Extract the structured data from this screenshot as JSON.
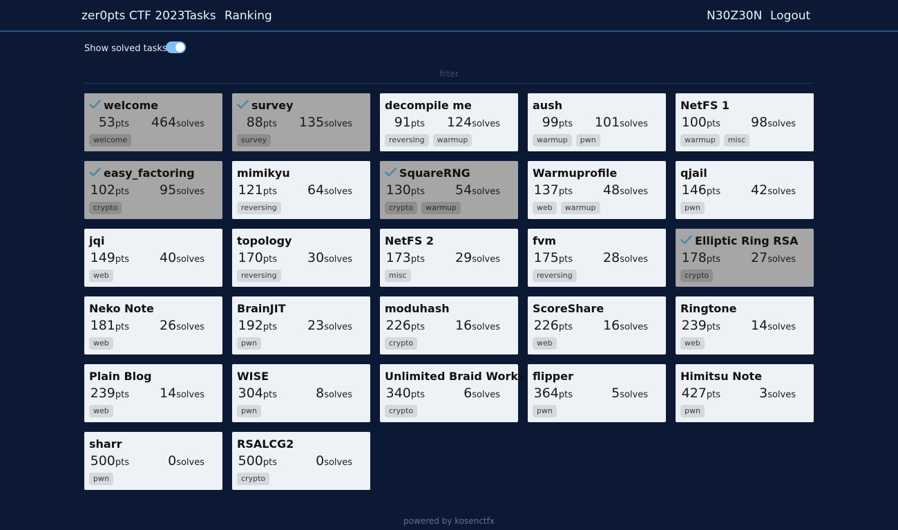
{
  "nav": {
    "brand": "zer0pts CTF 2023",
    "tasks": "Tasks",
    "ranking": "Ranking",
    "user": "N30Z30N",
    "logout": "Logout"
  },
  "toolbar": {
    "show_solved_label": "Show solved tasks",
    "show_solved": true,
    "filter_placeholder": "filter",
    "filter_value": ""
  },
  "labels": {
    "pts_unit": "pts",
    "solves_unit": "solves"
  },
  "tasks": [
    {
      "name": "welcome",
      "pts": 53,
      "solves": 464,
      "tags": [
        "welcome"
      ],
      "solved": true
    },
    {
      "name": "survey",
      "pts": 88,
      "solves": 135,
      "tags": [
        "survey"
      ],
      "solved": true
    },
    {
      "name": "decompile me",
      "pts": 91,
      "solves": 124,
      "tags": [
        "reversing",
        "warmup"
      ],
      "solved": false
    },
    {
      "name": "aush",
      "pts": 99,
      "solves": 101,
      "tags": [
        "warmup",
        "pwn"
      ],
      "solved": false
    },
    {
      "name": "NetFS 1",
      "pts": 100,
      "solves": 98,
      "tags": [
        "warmup",
        "misc"
      ],
      "solved": false
    },
    {
      "name": "easy_factoring",
      "pts": 102,
      "solves": 95,
      "tags": [
        "crypto"
      ],
      "solved": true
    },
    {
      "name": "mimikyu",
      "pts": 121,
      "solves": 64,
      "tags": [
        "reversing"
      ],
      "solved": false
    },
    {
      "name": "SquareRNG",
      "pts": 130,
      "solves": 54,
      "tags": [
        "crypto",
        "warmup"
      ],
      "solved": true
    },
    {
      "name": "Warmuprofile",
      "pts": 137,
      "solves": 48,
      "tags": [
        "web",
        "warmup"
      ],
      "solved": false
    },
    {
      "name": "qjail",
      "pts": 146,
      "solves": 42,
      "tags": [
        "pwn"
      ],
      "solved": false
    },
    {
      "name": "jqi",
      "pts": 149,
      "solves": 40,
      "tags": [
        "web"
      ],
      "solved": false
    },
    {
      "name": "topology",
      "pts": 170,
      "solves": 30,
      "tags": [
        "reversing"
      ],
      "solved": false
    },
    {
      "name": "NetFS 2",
      "pts": 173,
      "solves": 29,
      "tags": [
        "misc"
      ],
      "solved": false
    },
    {
      "name": "fvm",
      "pts": 175,
      "solves": 28,
      "tags": [
        "reversing"
      ],
      "solved": false
    },
    {
      "name": "Elliptic Ring RSA",
      "pts": 178,
      "solves": 27,
      "tags": [
        "crypto"
      ],
      "solved": true
    },
    {
      "name": "Neko Note",
      "pts": 181,
      "solves": 26,
      "tags": [
        "web"
      ],
      "solved": false
    },
    {
      "name": "BrainJIT",
      "pts": 192,
      "solves": 23,
      "tags": [
        "pwn"
      ],
      "solved": false
    },
    {
      "name": "moduhash",
      "pts": 226,
      "solves": 16,
      "tags": [
        "crypto"
      ],
      "solved": false
    },
    {
      "name": "ScoreShare",
      "pts": 226,
      "solves": 16,
      "tags": [
        "web"
      ],
      "solved": false
    },
    {
      "name": "Ringtone",
      "pts": 239,
      "solves": 14,
      "tags": [
        "web"
      ],
      "solved": false
    },
    {
      "name": "Plain Blog",
      "pts": 239,
      "solves": 14,
      "tags": [
        "web"
      ],
      "solved": false
    },
    {
      "name": "WISE",
      "pts": 304,
      "solves": 8,
      "tags": [
        "pwn"
      ],
      "solved": false
    },
    {
      "name": "Unlimited Braid Works",
      "pts": 340,
      "solves": 6,
      "tags": [
        "crypto"
      ],
      "solved": false
    },
    {
      "name": "flipper",
      "pts": 364,
      "solves": 5,
      "tags": [
        "pwn"
      ],
      "solved": false
    },
    {
      "name": "Himitsu Note",
      "pts": 427,
      "solves": 3,
      "tags": [
        "pwn"
      ],
      "solved": false
    },
    {
      "name": "sharr",
      "pts": 500,
      "solves": 0,
      "tags": [
        "pwn"
      ],
      "solved": false
    },
    {
      "name": "RSALCG2",
      "pts": 500,
      "solves": 0,
      "tags": [
        "crypto"
      ],
      "solved": false
    }
  ],
  "footer": "powered by kosenctfx",
  "colors": {
    "background": "#0b1935",
    "nav_border": "#2a5387",
    "card": "#eef2f7",
    "card_solved": "#a6a6a6",
    "check": "#4f86a8",
    "toggle": "#7ec0f5"
  }
}
